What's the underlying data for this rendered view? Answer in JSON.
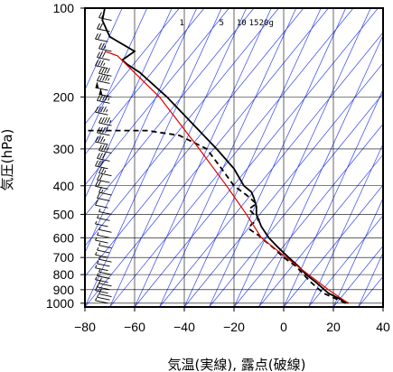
{
  "chart_data": {
    "type": "line",
    "subtype": "skew-t log-p emagram with wind barbs",
    "xlabel": "気温(実線), 露点(破線)",
    "ylabel": "気圧(hPa)",
    "xlim": [
      -80,
      40
    ],
    "ylim": [
      1030,
      100
    ],
    "y_scale": "log",
    "x_ticks": [
      -80,
      -60,
      -40,
      -20,
      0,
      20,
      40
    ],
    "x_tick_labels": [
      "−80",
      "−60",
      "−40",
      "−20",
      "0",
      "20",
      "40"
    ],
    "y_ticks": [
      100,
      200,
      300,
      400,
      500,
      600,
      700,
      800,
      900,
      1000
    ],
    "y_tick_labels": [
      "100",
      "200",
      "300",
      "400",
      "500",
      "600",
      "700",
      "800",
      "900",
      "1000"
    ],
    "mixing_ratio_labels": [
      "1",
      "5",
      "10",
      "15",
      "20g"
    ],
    "mixing_ratio_label_x": [
      -41,
      -25,
      -17,
      -12,
      -7
    ],
    "grid": true,
    "colors": {
      "frame": "#000000",
      "grid": "#000000",
      "guide_lines": "#3344ee",
      "temperature": "#000000",
      "dewpoint": "#000000",
      "parcel": "#dd0000",
      "barbs": "#000000"
    },
    "series": [
      {
        "role": "temperature",
        "style": "solid",
        "points": [
          [
            26,
            1000
          ],
          [
            18,
            925
          ],
          [
            13,
            850
          ],
          [
            9,
            800
          ],
          [
            6,
            750
          ],
          [
            2,
            700
          ],
          [
            -2,
            650
          ],
          [
            -6,
            600
          ],
          [
            -9,
            550
          ],
          [
            -11,
            500
          ],
          [
            -11,
            470
          ],
          [
            -12,
            440
          ],
          [
            -13,
            420
          ],
          [
            -16,
            400
          ],
          [
            -20,
            350
          ],
          [
            -27,
            300
          ],
          [
            -36,
            250
          ],
          [
            -47,
            200
          ],
          [
            -58,
            165
          ],
          [
            -63,
            155
          ],
          [
            -65,
            150
          ],
          [
            -60,
            140
          ],
          [
            -70,
            125
          ],
          [
            -73,
            110
          ],
          [
            -72,
            100
          ]
        ]
      },
      {
        "role": "dewpoint",
        "style": "dashed",
        "points": [
          [
            25,
            1000
          ],
          [
            16,
            925
          ],
          [
            11,
            850
          ],
          [
            8,
            800
          ],
          [
            5,
            750
          ],
          [
            0,
            700
          ],
          [
            -4,
            650
          ],
          [
            -7,
            620
          ],
          [
            -10,
            590
          ],
          [
            -14,
            560
          ],
          [
            -13,
            540
          ],
          [
            -10,
            520
          ],
          [
            -14,
            480
          ],
          [
            -11,
            460
          ],
          [
            -15,
            430
          ],
          [
            -20,
            400
          ],
          [
            -25,
            350
          ],
          [
            -31,
            300
          ],
          [
            -42,
            270
          ],
          [
            -55,
            260
          ],
          [
            -80,
            260
          ]
        ]
      },
      {
        "role": "parcel",
        "style": "solid",
        "points": [
          [
            26,
            1000
          ],
          [
            18,
            900
          ],
          [
            10,
            800
          ],
          [
            1,
            700
          ],
          [
            -9,
            600
          ],
          [
            -15,
            500
          ],
          [
            -23,
            400
          ],
          [
            -34,
            300
          ],
          [
            -50,
            200
          ],
          [
            -67,
            145
          ],
          [
            -72,
            140
          ]
        ]
      }
    ],
    "wind_profile": {
      "x_position": -70,
      "levels": [
        1000,
        975,
        950,
        925,
        900,
        875,
        850,
        825,
        800,
        775,
        750,
        725,
        700,
        675,
        650,
        625,
        600,
        575,
        550,
        525,
        500,
        475,
        450,
        430,
        410,
        390,
        370,
        350,
        330,
        310,
        290,
        270,
        250,
        230,
        210,
        200,
        190,
        180,
        170,
        160,
        150,
        140,
        130,
        120,
        110,
        100
      ],
      "speed_kt": [
        5,
        5,
        10,
        10,
        10,
        10,
        5,
        5,
        5,
        5,
        5,
        5,
        5,
        5,
        5,
        5,
        5,
        5,
        5,
        5,
        5,
        10,
        10,
        15,
        20,
        20,
        25,
        30,
        30,
        35,
        35,
        40,
        45,
        45,
        45,
        50,
        50,
        45,
        40,
        35,
        30,
        25,
        20,
        20,
        15,
        10
      ]
    }
  }
}
